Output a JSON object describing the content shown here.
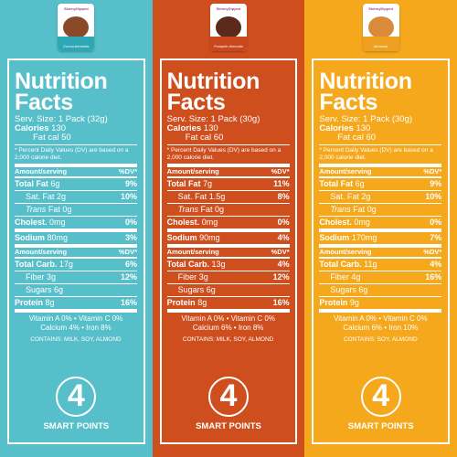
{
  "labels": [
    {
      "bag": {
        "brand": "SkinnyDipped",
        "name": "Cocoa Almonds",
        "blob_color": "#8a4a2a",
        "strip_color": "#2ea7b4"
      },
      "title": "Nutrition Facts",
      "serving": "Serv. Size: 1 Pack (32g)",
      "calories_label": "Calories",
      "calories": "130",
      "fat_cal": "Fat cal 50",
      "dv_note": "* Percent Daily Values (DV) are based on a 2,000 calorie diet.",
      "hdr_left": "Amount/serving",
      "hdr_right": "%DV*",
      "total_fat": {
        "label": "Total Fat",
        "amt": "6g",
        "dv": "9%"
      },
      "sat_fat": {
        "label": "Sat. Fat",
        "amt": "2g",
        "dv": "10%"
      },
      "trans_fat": {
        "label": "Trans",
        "amt": "Fat 0g"
      },
      "cholest": {
        "label": "Cholest.",
        "amt": "0mg",
        "dv": "0%"
      },
      "sodium": {
        "label": "Sodium",
        "amt": "80mg",
        "dv": "3%"
      },
      "hdr2_left": "Amount/serving",
      "hdr2_right": "%DV*",
      "carb": {
        "label": "Total Carb.",
        "amt": "17g",
        "dv": "6%"
      },
      "fiber": {
        "label": "Fiber",
        "amt": "3g",
        "dv": "12%"
      },
      "sugars": {
        "label": "Sugars",
        "amt": "6g"
      },
      "protein": {
        "label": "Protein",
        "amt": "8g",
        "dv": "16%"
      },
      "vit_line1": "Vitamin A 0% • Vitamin C 0%",
      "vit_line2": "Calcium 4% • Iron 8%",
      "contains": "CONTAINS: MILK, SOY, ALMOND",
      "points": "4",
      "points_label": "SMART POINTS"
    },
    {
      "bag": {
        "brand": "SkinnyDipped",
        "name": "Pumpkin Almonds",
        "blob_color": "#5a2a1a",
        "strip_color": "#c8471c"
      },
      "title": "Nutrition Facts",
      "serving": "Serv. Size: 1 Pack (30g)",
      "calories_label": "Calories",
      "calories": "130",
      "fat_cal": "Fat cal 60",
      "dv_note": "* Percent Daily Values (DV) are based on a 2,000 calorie diet.",
      "hdr_left": "Amount/serving",
      "hdr_right": "%DV*",
      "total_fat": {
        "label": "Total Fat",
        "amt": "7g",
        "dv": "11%"
      },
      "sat_fat": {
        "label": "Sat. Fat",
        "amt": "1.5g",
        "dv": "8%"
      },
      "trans_fat": {
        "label": "Trans",
        "amt": "Fat 0g"
      },
      "cholest": {
        "label": "Cholest.",
        "amt": "0mg",
        "dv": "0%"
      },
      "sodium": {
        "label": "Sodium",
        "amt": "90mg",
        "dv": "4%"
      },
      "hdr2_left": "Amount/serving",
      "hdr2_right": "%DV*",
      "carb": {
        "label": "Total Carb.",
        "amt": "13g",
        "dv": "4%"
      },
      "fiber": {
        "label": "Fiber",
        "amt": "3g",
        "dv": "12%"
      },
      "sugars": {
        "label": "Sugars",
        "amt": "6g"
      },
      "protein": {
        "label": "Protein",
        "amt": "8g",
        "dv": "16%"
      },
      "vit_line1": "Vitamin A 0% • Vitamin C 0%",
      "vit_line2": "Calcium 6% • Iron 8%",
      "contains": "CONTAINS: MILK, SOY, ALMOND",
      "points": "4",
      "points_label": "SMART POINTS"
    },
    {
      "bag": {
        "brand": "SkinnyDipped",
        "name": "Almonds",
        "blob_color": "#d98a3a",
        "strip_color": "#f0a020"
      },
      "title": "Nutrition Facts",
      "serving": "Serv. Size: 1 Pack (30g)",
      "calories_label": "Calories",
      "calories": "130",
      "fat_cal": "Fat cal 60",
      "dv_note": "* Percent Daily Values (DV) are based on a 2,000 calorie diet.",
      "hdr_left": "Amount/serving",
      "hdr_right": "%DV*",
      "total_fat": {
        "label": "Total Fat",
        "amt": "6g",
        "dv": "9%"
      },
      "sat_fat": {
        "label": "Sat. Fat",
        "amt": "2g",
        "dv": "10%"
      },
      "trans_fat": {
        "label": "Trans",
        "amt": "Fat 0g"
      },
      "cholest": {
        "label": "Cholest.",
        "amt": "0mg",
        "dv": "0%"
      },
      "sodium": {
        "label": "Sodium",
        "amt": "170mg",
        "dv": "7%"
      },
      "hdr2_left": "Amount/serving",
      "hdr2_right": "%DV*",
      "carb": {
        "label": "Total Carb.",
        "amt": "11g",
        "dv": "4%"
      },
      "fiber": {
        "label": "Fiber",
        "amt": "4g",
        "dv": "16%"
      },
      "sugars": {
        "label": "Sugars",
        "amt": "6g"
      },
      "protein": {
        "label": "Protein",
        "amt": "9g"
      },
      "vit_line1": "Vitamin A 0% • Vitamin C 0%",
      "vit_line2": "Calcium 6% • Iron 10%",
      "contains": "CONTAINS: SOY, ALMOND",
      "points": "4",
      "points_label": "SMART POINTS"
    }
  ]
}
